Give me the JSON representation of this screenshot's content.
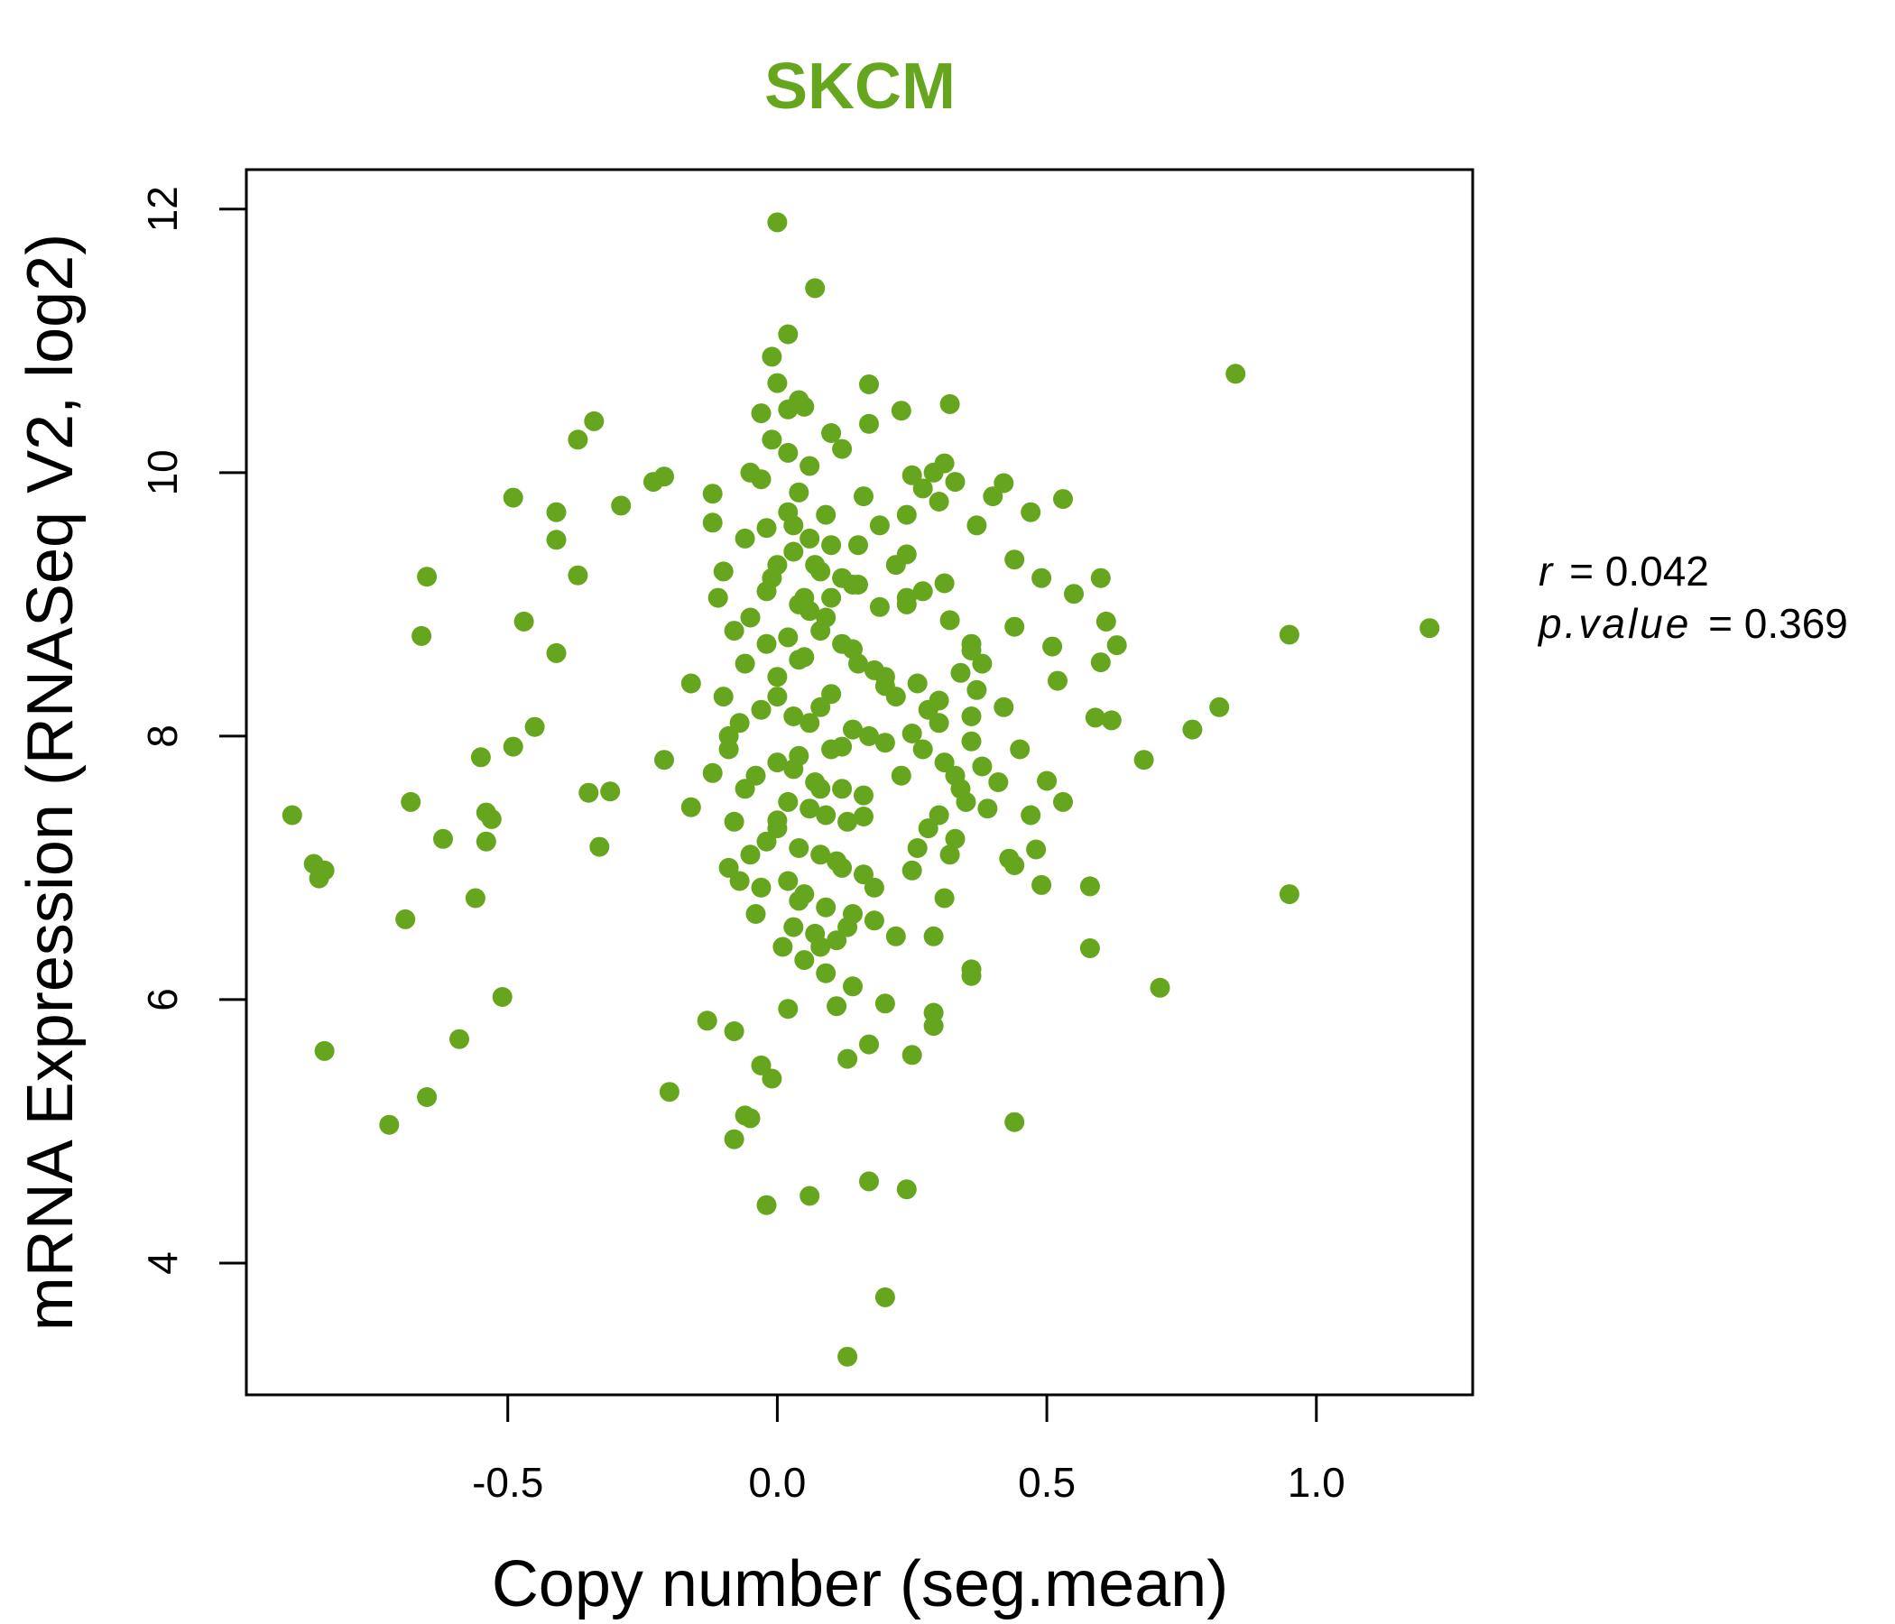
{
  "chart_data": {
    "type": "scatter",
    "title": "SKCM",
    "xlabel": "Copy number (seg.mean)",
    "ylabel": "mRNA Expression (RNASeq V2, log2)",
    "xlim": [
      -0.985,
      1.29
    ],
    "ylim": [
      3.0,
      12.3
    ],
    "x_ticks": [
      -0.5,
      0.0,
      0.5,
      1.0
    ],
    "x_tick_labels": [
      "-0.5",
      "0.0",
      "0.5",
      "1.0"
    ],
    "y_ticks": [
      4,
      6,
      8,
      10,
      12
    ],
    "y_tick_labels": [
      "4",
      "6",
      "8",
      "10",
      "12"
    ],
    "grid": false,
    "legend": "none",
    "annotation": {
      "r_label": "r",
      "r_value": "= 0.042",
      "p_label": "p.value",
      "p_value": "= 0.369"
    },
    "point_color": "#66a61e",
    "title_color": "#66a61e",
    "points": [
      [
        0.0,
        11.9
      ],
      [
        0.07,
        11.4
      ],
      [
        0.02,
        11.05
      ],
      [
        0.85,
        10.75
      ],
      [
        0.17,
        10.67
      ],
      [
        0.32,
        10.52
      ],
      [
        0.04,
        10.55
      ],
      [
        -0.34,
        10.39
      ],
      [
        -0.37,
        10.25
      ],
      [
        -0.01,
        10.88
      ],
      [
        0.0,
        10.68
      ],
      [
        0.23,
        10.47
      ],
      [
        -0.03,
        10.45
      ],
      [
        0.02,
        10.48
      ],
      [
        0.05,
        10.5
      ],
      [
        0.17,
        10.37
      ],
      [
        -0.01,
        10.25
      ],
      [
        0.1,
        10.3
      ],
      [
        0.12,
        10.18
      ],
      [
        -0.21,
        9.97
      ],
      [
        -0.23,
        9.93
      ],
      [
        0.31,
        10.07
      ],
      [
        0.29,
        10.0
      ],
      [
        0.25,
        9.98
      ],
      [
        0.42,
        9.92
      ],
      [
        0.33,
        9.93
      ],
      [
        0.27,
        9.88
      ],
      [
        -0.49,
        9.81
      ],
      [
        -0.29,
        9.75
      ],
      [
        0.4,
        9.82
      ],
      [
        0.53,
        9.8
      ],
      [
        -0.12,
        9.84
      ],
      [
        0.3,
        9.78
      ],
      [
        0.16,
        9.82
      ],
      [
        -0.41,
        9.7
      ],
      [
        0.47,
        9.7
      ],
      [
        0.24,
        9.68
      ],
      [
        0.09,
        9.68
      ],
      [
        -0.12,
        9.62
      ],
      [
        0.37,
        9.6
      ],
      [
        0.03,
        9.6
      ],
      [
        -0.02,
        9.58
      ],
      [
        -0.41,
        9.49
      ],
      [
        0.15,
        9.45
      ],
      [
        0.24,
        9.38
      ],
      [
        0.44,
        9.34
      ],
      [
        0.07,
        9.3
      ],
      [
        -0.01,
        9.2
      ],
      [
        -0.37,
        9.22
      ],
      [
        -0.65,
        9.21
      ],
      [
        0.49,
        9.2
      ],
      [
        0.6,
        9.2
      ],
      [
        0.31,
        9.16
      ],
      [
        0.14,
        9.15
      ],
      [
        0.55,
        9.08
      ],
      [
        0.24,
        9.05
      ],
      [
        0.19,
        8.98
      ],
      [
        0.09,
        8.9
      ],
      [
        -0.47,
        8.87
      ],
      [
        0.61,
        8.87
      ],
      [
        0.32,
        8.88
      ],
      [
        0.44,
        8.83
      ],
      [
        0.95,
        8.77
      ],
      [
        1.21,
        8.82
      ],
      [
        -0.66,
        8.76
      ],
      [
        0.36,
        8.7
      ],
      [
        0.51,
        8.68
      ],
      [
        0.63,
        8.69
      ],
      [
        0.14,
        8.66
      ],
      [
        -0.41,
        8.63
      ],
      [
        0.6,
        8.56
      ],
      [
        0.04,
        8.58
      ],
      [
        0.34,
        8.48
      ],
      [
        0.52,
        8.42
      ],
      [
        -0.16,
        8.4
      ],
      [
        0.0,
        8.45
      ],
      [
        0.2,
        8.38
      ],
      [
        0.1,
        8.32
      ],
      [
        0.3,
        8.27
      ],
      [
        0.42,
        8.22
      ],
      [
        0.08,
        8.22
      ],
      [
        0.36,
        8.15
      ],
      [
        0.59,
        8.14
      ],
      [
        0.62,
        8.12
      ],
      [
        0.82,
        8.22
      ],
      [
        0.77,
        8.05
      ],
      [
        -0.45,
        8.07
      ],
      [
        0.25,
        8.02
      ],
      [
        -0.09,
        8.0
      ],
      [
        0.36,
        7.96
      ],
      [
        -0.49,
        7.92
      ],
      [
        0.12,
        7.92
      ],
      [
        0.45,
        7.9
      ],
      [
        -0.55,
        7.84
      ],
      [
        -0.21,
        7.82
      ],
      [
        0.68,
        7.82
      ],
      [
        0.38,
        7.77
      ],
      [
        0.03,
        7.75
      ],
      [
        -0.12,
        7.72
      ],
      [
        0.23,
        7.7
      ],
      [
        0.5,
        7.66
      ],
      [
        -0.35,
        7.57
      ],
      [
        -0.31,
        7.58
      ],
      [
        0.08,
        7.6
      ],
      [
        0.35,
        7.5
      ],
      [
        0.53,
        7.5
      ],
      [
        -0.68,
        7.5
      ],
      [
        -0.16,
        7.46
      ],
      [
        -0.54,
        7.42
      ],
      [
        -0.53,
        7.37
      ],
      [
        -0.9,
        7.4
      ],
      [
        0.47,
        7.4
      ],
      [
        0.0,
        7.36
      ],
      [
        0.16,
        7.39
      ],
      [
        -0.62,
        7.22
      ],
      [
        -0.54,
        7.2
      ],
      [
        0.33,
        7.22
      ],
      [
        -0.33,
        7.16
      ],
      [
        0.48,
        7.14
      ],
      [
        0.43,
        7.07
      ],
      [
        0.44,
        7.02
      ],
      [
        -0.86,
        7.03
      ],
      [
        -0.84,
        6.98
      ],
      [
        -0.85,
        6.92
      ],
      [
        0.11,
        7.05
      ],
      [
        0.25,
        6.98
      ],
      [
        0.49,
        6.87
      ],
      [
        0.58,
        6.86
      ],
      [
        0.95,
        6.8
      ],
      [
        -0.56,
        6.77
      ],
      [
        0.31,
        6.77
      ],
      [
        0.04,
        6.75
      ],
      [
        -0.69,
        6.61
      ],
      [
        0.13,
        6.55
      ],
      [
        0.22,
        6.48
      ],
      [
        0.29,
        6.48
      ],
      [
        0.58,
        6.39
      ],
      [
        0.08,
        6.4
      ],
      [
        0.36,
        6.23
      ],
      [
        0.36,
        6.18
      ],
      [
        0.71,
        6.09
      ],
      [
        -0.51,
        6.02
      ],
      [
        0.2,
        5.97
      ],
      [
        0.11,
        5.95
      ],
      [
        0.02,
        5.93
      ],
      [
        -0.13,
        5.84
      ],
      [
        0.29,
        5.9
      ],
      [
        -0.08,
        5.76
      ],
      [
        -0.59,
        5.7
      ],
      [
        0.17,
        5.66
      ],
      [
        0.29,
        5.8
      ],
      [
        -0.84,
        5.61
      ],
      [
        0.25,
        5.58
      ],
      [
        0.13,
        5.55
      ],
      [
        -0.03,
        5.5
      ],
      [
        -0.01,
        5.4
      ],
      [
        -0.2,
        5.3
      ],
      [
        -0.65,
        5.26
      ],
      [
        -0.06,
        5.12
      ],
      [
        -0.05,
        5.1
      ],
      [
        0.44,
        5.07
      ],
      [
        -0.72,
        5.05
      ],
      [
        -0.08,
        4.94
      ],
      [
        0.17,
        4.62
      ],
      [
        0.24,
        4.56
      ],
      [
        0.06,
        4.51
      ],
      [
        -0.02,
        4.44
      ],
      [
        0.2,
        3.74
      ],
      [
        0.13,
        3.29
      ],
      [
        0.04,
        9.0
      ],
      [
        0.06,
        8.95
      ],
      [
        0.1,
        9.05
      ],
      [
        0.08,
        8.8
      ],
      [
        0.12,
        8.7
      ],
      [
        0.02,
        8.75
      ],
      [
        -0.02,
        8.7
      ],
      [
        0.05,
        8.6
      ],
      [
        0.15,
        8.55
      ],
      [
        0.18,
        8.5
      ],
      [
        0.2,
        8.45
      ],
      [
        0.22,
        8.3
      ],
      [
        0.0,
        8.3
      ],
      [
        -0.03,
        8.2
      ],
      [
        0.03,
        8.15
      ],
      [
        0.06,
        8.1
      ],
      [
        0.14,
        8.05
      ],
      [
        0.17,
        8.0
      ],
      [
        0.2,
        7.95
      ],
      [
        0.1,
        7.9
      ],
      [
        0.04,
        7.85
      ],
      [
        0.0,
        7.8
      ],
      [
        -0.04,
        7.7
      ],
      [
        0.07,
        7.65
      ],
      [
        0.12,
        7.6
      ],
      [
        0.16,
        7.55
      ],
      [
        0.02,
        7.5
      ],
      [
        0.06,
        7.45
      ],
      [
        0.09,
        7.4
      ],
      [
        0.13,
        7.35
      ],
      [
        0.0,
        7.3
      ],
      [
        -0.02,
        7.2
      ],
      [
        0.04,
        7.15
      ],
      [
        0.08,
        7.1
      ],
      [
        0.12,
        7.0
      ],
      [
        0.16,
        6.95
      ],
      [
        0.18,
        6.85
      ],
      [
        0.02,
        6.9
      ],
      [
        -0.03,
        6.85
      ],
      [
        0.05,
        6.8
      ],
      [
        0.09,
        6.7
      ],
      [
        0.14,
        6.65
      ],
      [
        0.18,
        6.6
      ],
      [
        0.03,
        6.55
      ],
      [
        0.07,
        6.5
      ],
      [
        0.11,
        6.45
      ],
      [
        0.01,
        6.4
      ],
      [
        0.05,
        6.3
      ],
      [
        0.09,
        6.2
      ],
      [
        0.14,
        6.1
      ],
      [
        0.06,
        9.5
      ],
      [
        0.1,
        9.45
      ],
      [
        0.03,
        9.4
      ],
      [
        0.0,
        9.3
      ],
      [
        0.08,
        9.25
      ],
      [
        0.12,
        9.2
      ],
      [
        0.15,
        9.15
      ],
      [
        -0.02,
        9.1
      ],
      [
        0.05,
        9.05
      ],
      [
        0.02,
        9.7
      ],
      [
        0.04,
        9.85
      ],
      [
        -0.03,
        9.95
      ],
      [
        0.06,
        10.05
      ],
      [
        0.02,
        10.15
      ],
      [
        -0.05,
        10.0
      ],
      [
        0.26,
        8.4
      ],
      [
        0.28,
        8.2
      ],
      [
        0.3,
        8.1
      ],
      [
        0.27,
        7.9
      ],
      [
        0.31,
        7.8
      ],
      [
        0.33,
        7.7
      ],
      [
        0.34,
        7.6
      ],
      [
        0.3,
        7.4
      ],
      [
        0.28,
        7.3
      ],
      [
        0.26,
        7.15
      ],
      [
        0.32,
        7.1
      ],
      [
        0.24,
        9.0
      ],
      [
        0.27,
        9.1
      ],
      [
        0.22,
        9.3
      ],
      [
        0.19,
        9.6
      ],
      [
        -0.05,
        8.9
      ],
      [
        -0.08,
        8.8
      ],
      [
        -0.06,
        8.55
      ],
      [
        -0.1,
        8.3
      ],
      [
        -0.07,
        8.1
      ],
      [
        -0.09,
        7.9
      ],
      [
        -0.06,
        7.6
      ],
      [
        -0.08,
        7.35
      ],
      [
        -0.05,
        7.1
      ],
      [
        -0.07,
        6.9
      ],
      [
        -0.04,
        6.65
      ],
      [
        -0.09,
        7.0
      ],
      [
        -0.11,
        9.05
      ],
      [
        -0.1,
        9.25
      ],
      [
        -0.06,
        9.5
      ],
      [
        0.38,
        8.55
      ],
      [
        0.37,
        8.35
      ],
      [
        0.36,
        8.65
      ],
      [
        0.41,
        7.65
      ],
      [
        0.39,
        7.45
      ]
    ]
  }
}
